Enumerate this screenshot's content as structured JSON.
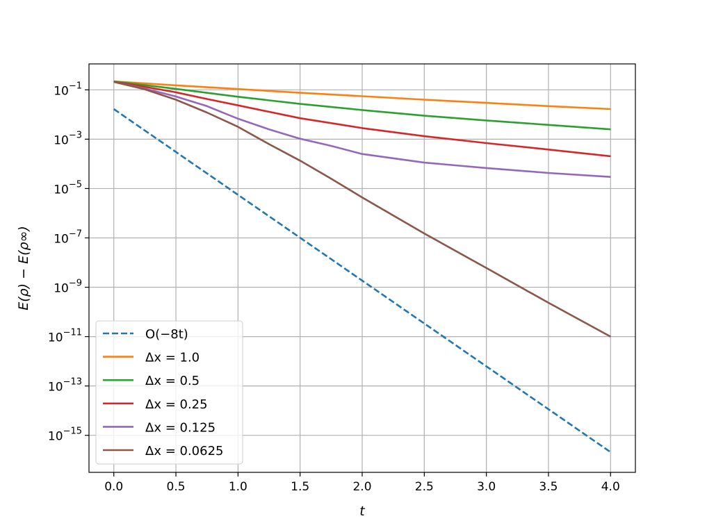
{
  "chart_data": {
    "type": "line",
    "title": "",
    "xlabel": "t",
    "ylabel": "E(ρ) − E(ρ∞)",
    "xlim": [
      -0.2,
      4.2
    ],
    "ylim_log10": [
      -16.5,
      0.05
    ],
    "yscale": "log",
    "grid": true,
    "legend_position": "lower-left",
    "x_ticks": [
      {
        "value": 0.0,
        "label": "0.0"
      },
      {
        "value": 0.5,
        "label": "0.5"
      },
      {
        "value": 1.0,
        "label": "1.0"
      },
      {
        "value": 1.5,
        "label": "1.5"
      },
      {
        "value": 2.0,
        "label": "2.0"
      },
      {
        "value": 2.5,
        "label": "2.5"
      },
      {
        "value": 3.0,
        "label": "3.0"
      },
      {
        "value": 3.5,
        "label": "3.5"
      },
      {
        "value": 4.0,
        "label": "4.0"
      }
    ],
    "y_ticks": [
      {
        "exp": -1,
        "base": "10",
        "sup": "−1"
      },
      {
        "exp": -3,
        "base": "10",
        "sup": "−3"
      },
      {
        "exp": -5,
        "base": "10",
        "sup": "−5"
      },
      {
        "exp": -7,
        "base": "10",
        "sup": "−7"
      },
      {
        "exp": -9,
        "base": "10",
        "sup": "−9"
      },
      {
        "exp": -11,
        "base": "10",
        "sup": "−11"
      },
      {
        "exp": -13,
        "base": "10",
        "sup": "−13"
      },
      {
        "exp": -15,
        "base": "10",
        "sup": "−15"
      }
    ],
    "series": [
      {
        "name": "O(−8t)",
        "color": "#1f77b4",
        "dash": true,
        "x": [
          0.0,
          4.0
        ],
        "log10_y": [
          -1.78,
          -15.68
        ]
      },
      {
        "name": "Δx = 1.0",
        "color": "#ff7f0e",
        "dash": false,
        "x": [
          0.0,
          0.5,
          1.0,
          1.5,
          2.0,
          2.5,
          3.0,
          3.5,
          4.0
        ],
        "log10_y": [
          -0.66,
          -0.82,
          -0.97,
          -1.12,
          -1.26,
          -1.4,
          -1.53,
          -1.66,
          -1.78
        ]
      },
      {
        "name": "Δx = 0.5",
        "color": "#2ca02c",
        "dash": false,
        "x": [
          0.0,
          0.5,
          1.0,
          1.5,
          2.0,
          2.5,
          3.0,
          3.5,
          4.0
        ],
        "log10_y": [
          -0.66,
          -0.96,
          -1.28,
          -1.57,
          -1.82,
          -2.05,
          -2.24,
          -2.42,
          -2.6
        ]
      },
      {
        "name": "Δx = 0.25",
        "color": "#d62728",
        "dash": false,
        "x": [
          0.0,
          0.25,
          0.5,
          0.75,
          1.0,
          1.5,
          2.0,
          2.5,
          3.0,
          3.5,
          4.0
        ],
        "log10_y": [
          -0.67,
          -0.88,
          -1.1,
          -1.37,
          -1.63,
          -2.15,
          -2.55,
          -2.88,
          -3.16,
          -3.42,
          -3.69
        ]
      },
      {
        "name": "Δx = 0.125",
        "color": "#9467bd",
        "dash": false,
        "x": [
          0.0,
          0.25,
          0.5,
          0.75,
          1.0,
          1.25,
          1.5,
          1.75,
          2.0,
          2.5,
          3.0,
          3.5,
          4.0
        ],
        "log10_y": [
          -0.68,
          -0.95,
          -1.27,
          -1.66,
          -2.17,
          -2.6,
          -2.98,
          -3.27,
          -3.6,
          -3.95,
          -4.17,
          -4.37,
          -4.53
        ]
      },
      {
        "name": "Δx = 0.0625",
        "color": "#8c564b",
        "dash": false,
        "x": [
          0.0,
          0.25,
          0.5,
          0.75,
          1.0,
          1.25,
          1.5,
          1.75,
          2.0,
          2.5,
          3.0,
          3.5,
          4.0
        ],
        "log10_y": [
          -0.68,
          -0.98,
          -1.4,
          -1.92,
          -2.5,
          -3.2,
          -3.87,
          -4.6,
          -5.36,
          -6.82,
          -8.22,
          -9.63,
          -11.0
        ]
      }
    ]
  }
}
